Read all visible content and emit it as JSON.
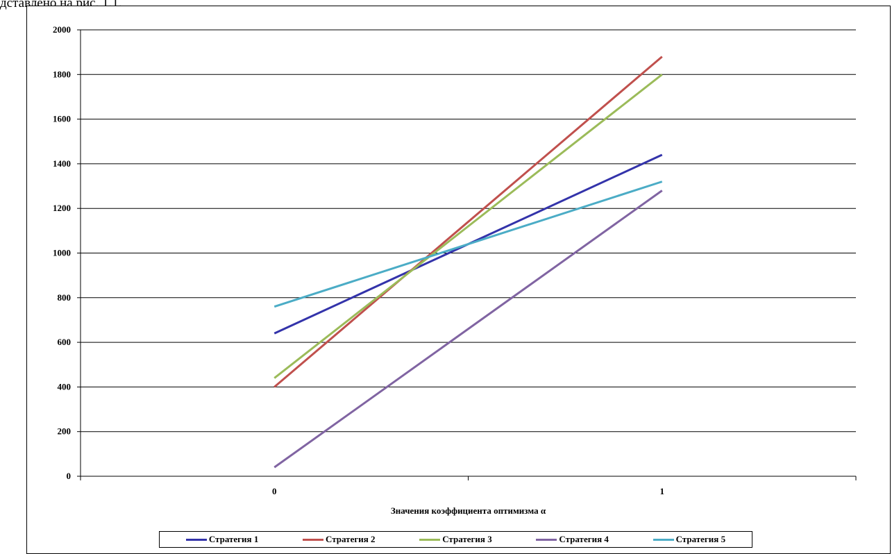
{
  "caption": {
    "text": "дставлено на рис. 1.1."
  },
  "chart_data": {
    "type": "line",
    "title": "",
    "xlabel": "Значения коэффициента оптимизма α",
    "ylabel": "",
    "x": [
      0,
      1
    ],
    "categories": [
      "0",
      "1"
    ],
    "ylim": [
      0,
      2000
    ],
    "yticks": [
      0,
      200,
      400,
      600,
      800,
      1000,
      1200,
      1400,
      1600,
      1800,
      2000
    ],
    "grid": true,
    "legend_position": "bottom",
    "series": [
      {
        "name": "Стратегия 1",
        "values": [
          640,
          1440
        ],
        "color": "#3333aa"
      },
      {
        "name": "Стратегия 2",
        "values": [
          400,
          1880
        ],
        "color": "#c0504d"
      },
      {
        "name": "Стратегия 3",
        "values": [
          440,
          1800
        ],
        "color": "#9bbb59"
      },
      {
        "name": "Стратегия 4",
        "values": [
          40,
          1280
        ],
        "color": "#8064a2"
      },
      {
        "name": "Стратегия 5",
        "values": [
          760,
          1320
        ],
        "color": "#4bacc6"
      }
    ]
  }
}
